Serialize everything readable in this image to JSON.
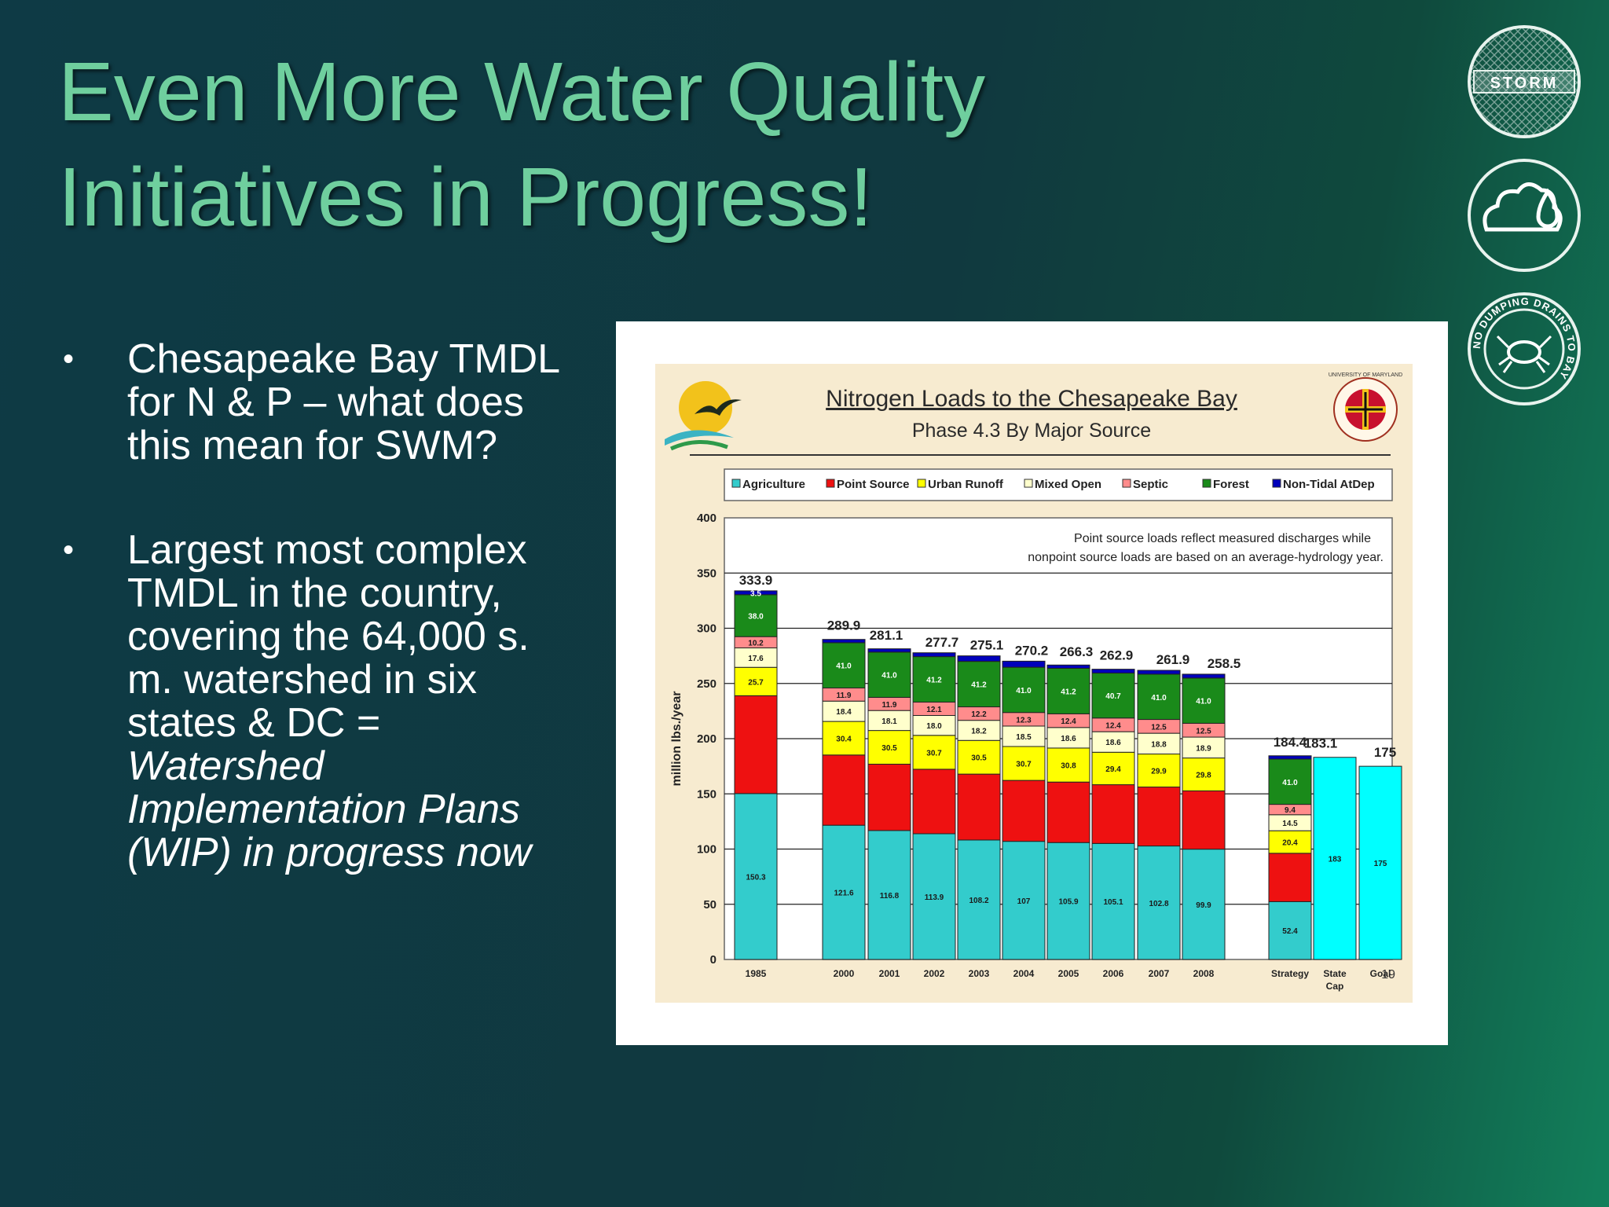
{
  "slide": {
    "title_line1": "Even More Water Quality",
    "title_line2": "Initiatives in Progress!",
    "bullet1": "Chesapeake Bay TMDL for N & P – what does this mean for SWM?",
    "bullet2_plain": "Largest most complex TMDL in the country, covering the 64,000 s. m. watershed in six states & DC = ",
    "bullet2_italic": "Watershed Implementation Plans (WIP) in progress now",
    "page_number": "19"
  },
  "icons": {
    "storm": "storm-drain-icon",
    "cloud": "cloud-drop-icon",
    "crab": "no-dumping-crab-icon"
  },
  "badges": {
    "storm_text": "STORM",
    "crab_text": "NO DUMPING DRAINS TO BAY",
    "umd_text": "UNIVERSITY OF MARYLAND"
  },
  "chart_data": {
    "type": "bar",
    "stacked": true,
    "title": "Nitrogen Loads to the Chesapeake Bay",
    "subtitle": "Phase 4.3 By Major Source",
    "ylabel": "million lbs./year",
    "ylim": [
      0,
      400
    ],
    "yticks": [
      0,
      50,
      100,
      150,
      200,
      250,
      300,
      350,
      400
    ],
    "grid": true,
    "legend_position": "top",
    "annotation": [
      "Point source loads reflect measured discharges while",
      "nonpoint source loads are based on an average-hydrology year."
    ],
    "categories": [
      "1985",
      "2000",
      "2001",
      "2002",
      "2003",
      "2004",
      "2005",
      "2006",
      "2007",
      "2008",
      "Strategy",
      "State Cap",
      "Goal"
    ],
    "category_labels": [
      [
        "1985"
      ],
      [
        "2000"
      ],
      [
        "2001"
      ],
      [
        "2002"
      ],
      [
        "2003"
      ],
      [
        "2004"
      ],
      [
        "2005"
      ],
      [
        "2006"
      ],
      [
        "2007"
      ],
      [
        "2008"
      ],
      [
        "Strategy"
      ],
      [
        "State",
        "Cap"
      ],
      [
        "Goal"
      ]
    ],
    "totals": [
      "333.9",
      "289.9",
      "281.1",
      "277.7",
      "275.1",
      "270.2",
      "266.3",
      "262.9",
      "261.9",
      "258.5",
      "184.4",
      "183.1",
      "175"
    ],
    "series": [
      {
        "name": "Agriculture",
        "color": "#33cccc",
        "values": [
          150.3,
          121.6,
          116.8,
          113.9,
          108.2,
          107,
          105.9,
          105.1,
          102.8,
          99.9,
          52.4,
          null,
          null
        ],
        "labels": [
          "150.3",
          "121.6",
          "116.8",
          "113.9",
          "108.2",
          "107",
          "105.9",
          "105.1",
          "102.8",
          "99.9",
          "52.4",
          "",
          ""
        ]
      },
      {
        "name": "Point Source",
        "color": "#ee1111",
        "values": [
          88.6,
          63.6,
          60.1,
          58.4,
          59.7,
          55.2,
          54.8,
          53.2,
          53.4,
          52.8,
          43.8,
          null,
          null
        ],
        "labels": [
          "",
          "",
          "",
          "",
          "",
          "",
          "",
          "",
          "",
          "",
          "",
          "",
          ""
        ]
      },
      {
        "name": "Urban Runoff",
        "color": "#ffff00",
        "values": [
          25.7,
          30.4,
          30.5,
          30.7,
          30.5,
          30.7,
          30.8,
          29.4,
          29.9,
          29.8,
          20.4,
          null,
          null
        ],
        "labels": [
          "25.7",
          "30.4",
          "30.5",
          "30.7",
          "30.5",
          "30.7",
          "30.8",
          "29.4",
          "29.9",
          "29.8",
          "20.4",
          "",
          ""
        ]
      },
      {
        "name": "Mixed Open",
        "color": "#ffffcc",
        "values": [
          17.6,
          18.4,
          18.1,
          18.0,
          18.2,
          18.5,
          18.6,
          18.6,
          18.8,
          18.9,
          14.5,
          null,
          null
        ],
        "labels": [
          "17.6",
          "18.4",
          "18.1",
          "18.0",
          "18.2",
          "18.5",
          "18.6",
          "18.6",
          "18.8",
          "18.9",
          "14.5",
          "",
          ""
        ]
      },
      {
        "name": "Septic",
        "color": "#ff8c8c",
        "values": [
          10.2,
          11.9,
          11.9,
          12.1,
          12.2,
          12.3,
          12.4,
          12.4,
          12.5,
          12.5,
          9.4,
          null,
          null
        ],
        "labels": [
          "10.2",
          "11.9",
          "11.9",
          "12.1",
          "12.2",
          "12.3",
          "12.4",
          "12.4",
          "12.5",
          "12.5",
          "9.4",
          "",
          ""
        ]
      },
      {
        "name": "Forest",
        "color": "#1a8a1a",
        "values": [
          38.0,
          41.0,
          41.0,
          41.2,
          41.2,
          41.0,
          41.2,
          40.7,
          41.0,
          41.0,
          41.0,
          null,
          null
        ],
        "labels": [
          "38.0",
          "41.0",
          "41.0",
          "41.2",
          "41.2",
          "41.0",
          "41.2",
          "40.7",
          "41.0",
          "41.0",
          "41.0",
          "",
          ""
        ]
      },
      {
        "name": "Non-Tidal AtDep",
        "color": "#0000bb",
        "values": [
          3.5,
          3.0,
          3.0,
          3.5,
          5.0,
          5.5,
          3.0,
          3.5,
          3.5,
          3.5,
          3.0,
          null,
          null
        ],
        "labels": [
          "3.5",
          "",
          "",
          "",
          "",
          "",
          "",
          "",
          "",
          "",
          "",
          "",
          ""
        ]
      },
      {
        "name": "",
        "color": "#00ffff",
        "values": [
          null,
          null,
          null,
          null,
          null,
          null,
          null,
          null,
          null,
          null,
          null,
          183.1,
          175
        ],
        "labels": [
          "",
          "",
          "",
          "",
          "",
          "",
          "",
          "",
          "",
          "",
          "",
          "183",
          "175"
        ]
      }
    ]
  }
}
